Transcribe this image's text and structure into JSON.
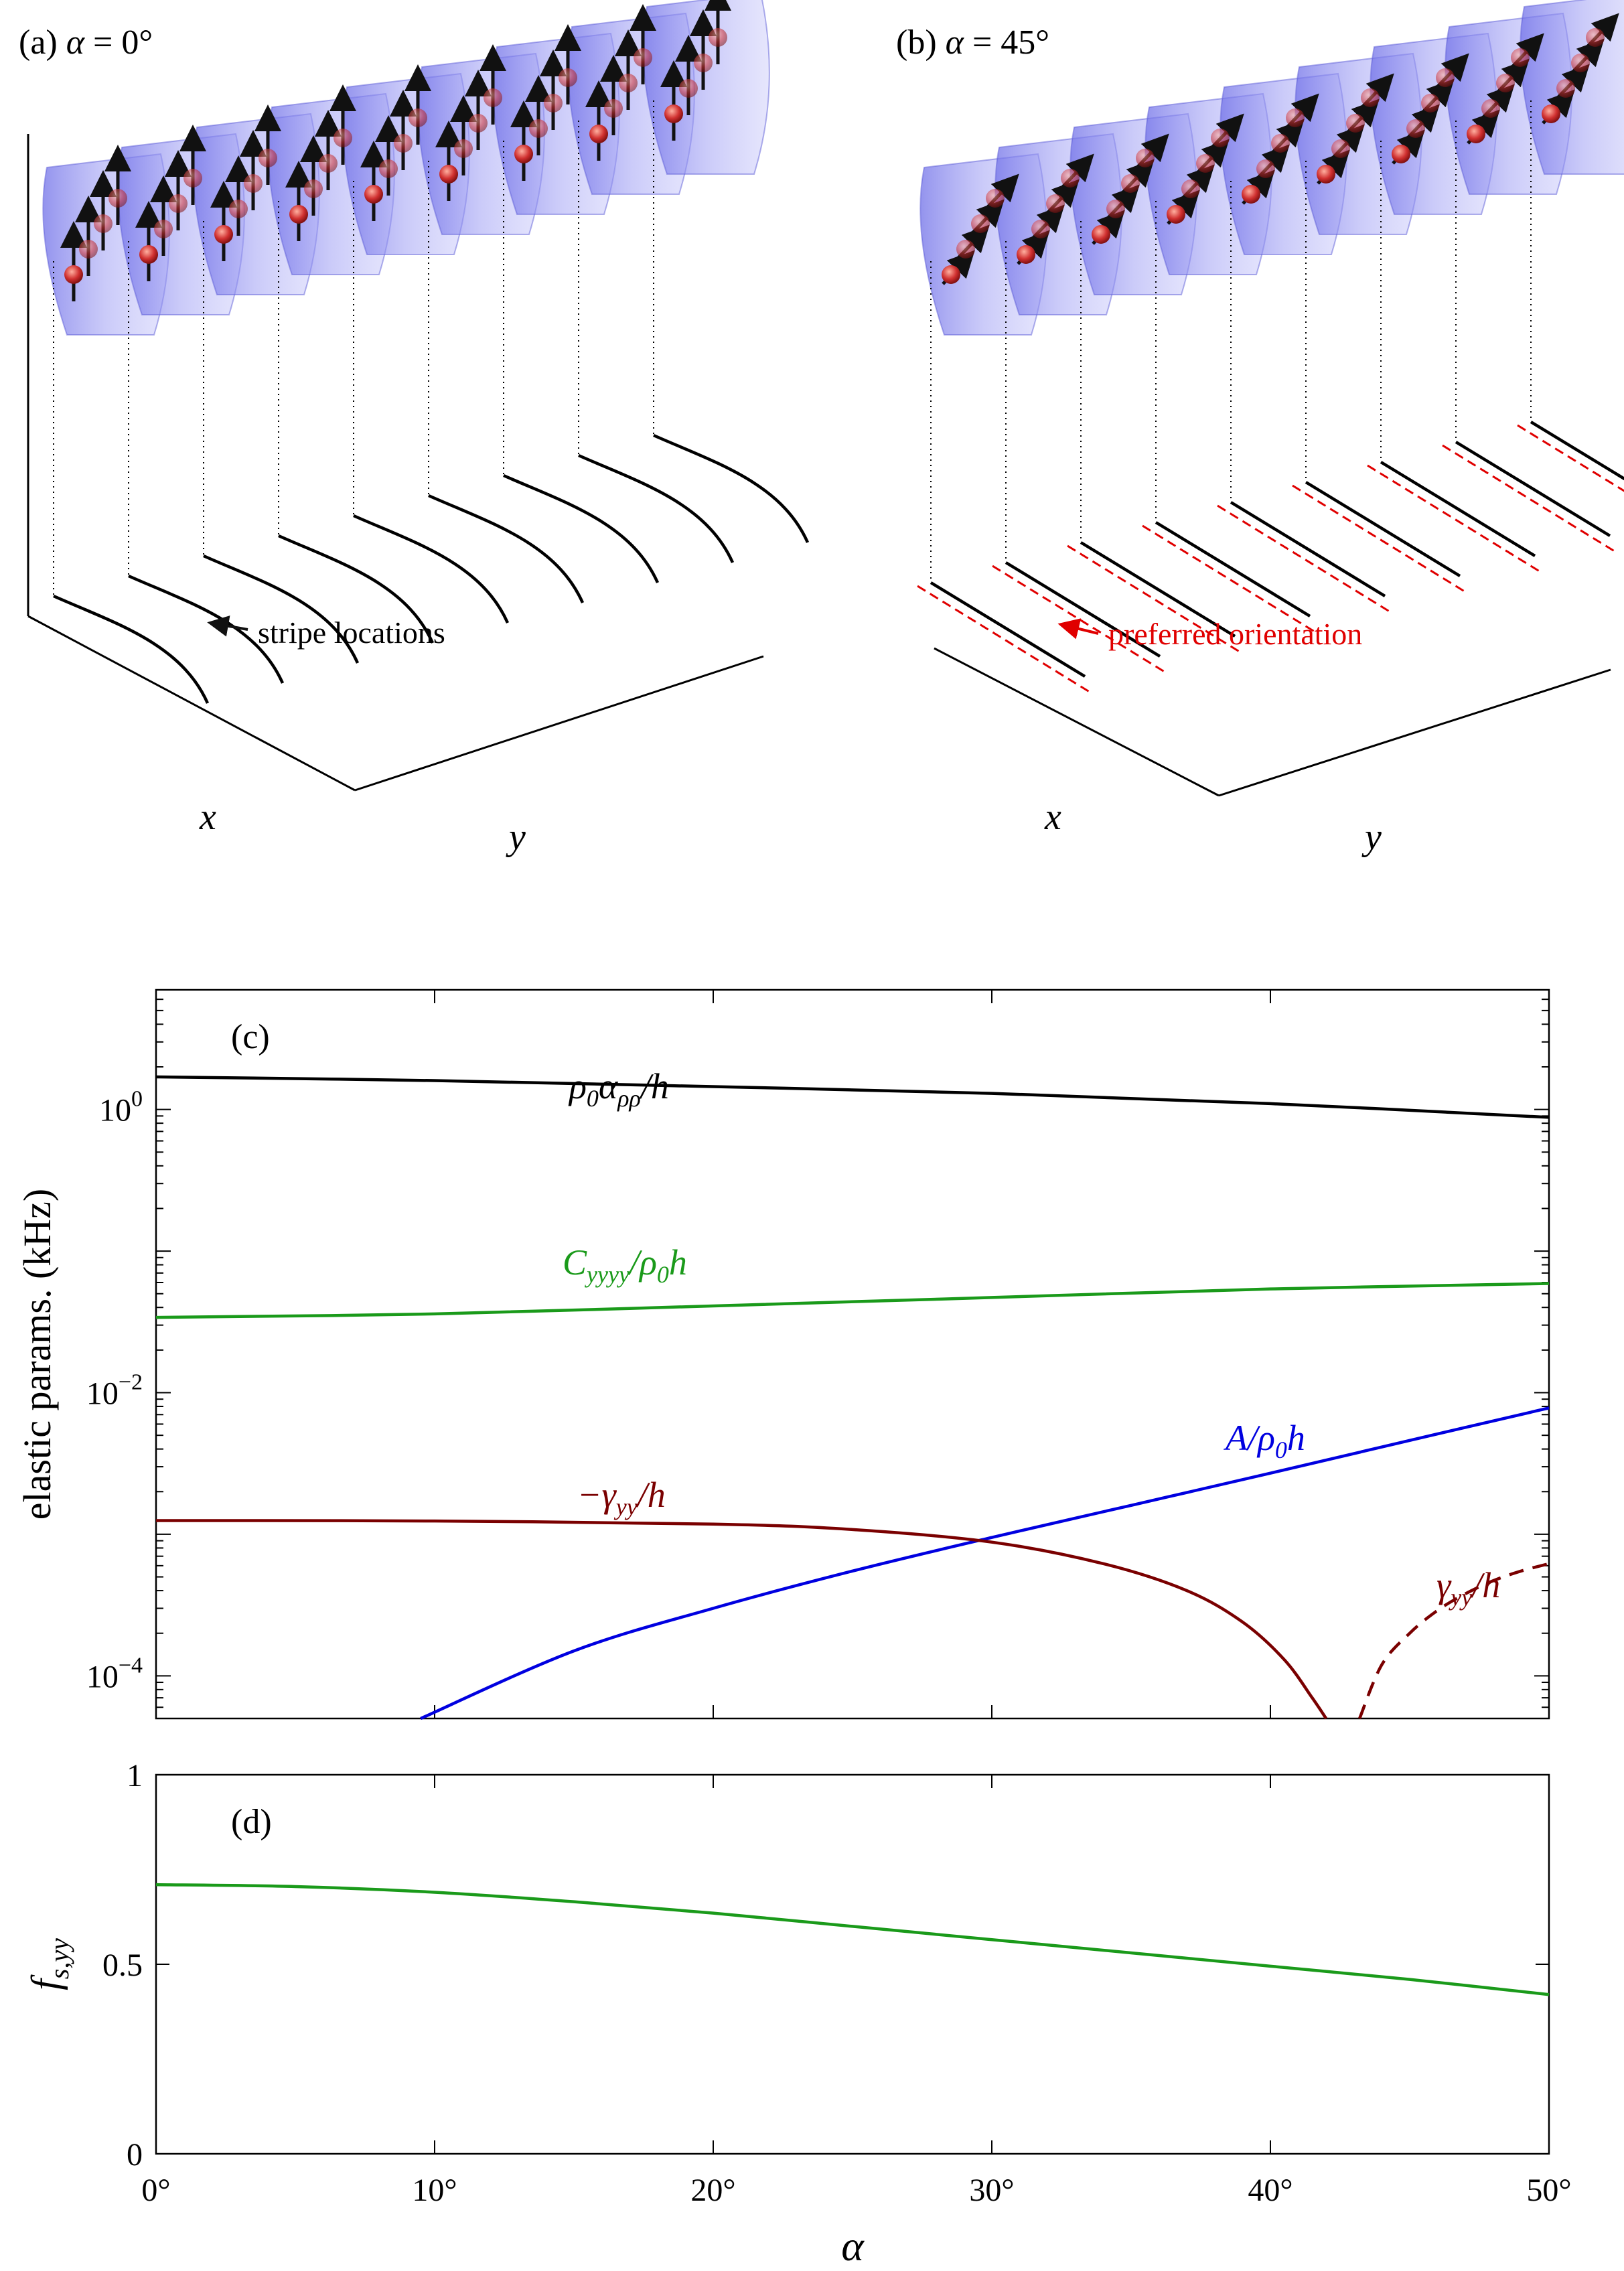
{
  "panels": {
    "a": {
      "title_prefix": "(a) ",
      "title_var": "α",
      "title_suffix": " = 0°",
      "annotation": "stripe locations",
      "xlabel": "x",
      "ylabel": "y"
    },
    "b": {
      "title_prefix": "(b) ",
      "title_var": "α",
      "title_suffix": " = 45°",
      "annotation": "preferred orientation",
      "xlabel": "x",
      "ylabel": "y"
    }
  },
  "colors": {
    "black": "#000000",
    "green": "#1a9a1a",
    "blue": "#0000e0",
    "darkred": "#7a0000",
    "red": "#e00000",
    "lobe": "#8c8cf0",
    "atom": "#d03030"
  },
  "chart_data": [
    {
      "type": "line",
      "panel_label": "(c)",
      "title": "",
      "xlabel": "",
      "ylabel": "elastic params. (kHz)",
      "yscale": "log",
      "xlim": [
        0,
        50
      ],
      "ylim": [
        5e-05,
        7
      ],
      "y_tick_values": [
        0.0001,
        0.01,
        1
      ],
      "y_tick_labels": [
        "10",
        "10",
        "10"
      ],
      "y_tick_exponents": [
        "−4",
        "−2",
        "0"
      ],
      "series": [
        {
          "name": "ρ0αρρ/h",
          "label_parts": [
            "ρ",
            "0",
            "α",
            "ρρ",
            "/h"
          ],
          "color": "black",
          "style": "solid",
          "x": [
            0,
            10,
            20,
            30,
            40,
            50
          ],
          "y": [
            1.7,
            1.6,
            1.45,
            1.3,
            1.1,
            0.88
          ]
        },
        {
          "name": "Cyyyy/ρ0h",
          "label_parts": [
            "C",
            "yyyy",
            "/ρ",
            "0",
            "h"
          ],
          "color": "green",
          "style": "solid",
          "x": [
            0,
            10,
            20,
            30,
            40,
            50
          ],
          "y": [
            0.034,
            0.036,
            0.041,
            0.047,
            0.054,
            0.059
          ]
        },
        {
          "name": "A/ρ0h",
          "label_parts": [
            "A/ρ",
            "0",
            "h"
          ],
          "color": "blue",
          "style": "solid",
          "x": [
            9.5,
            15,
            20,
            25,
            30,
            35,
            40,
            45,
            50
          ],
          "y": [
            5e-05,
            0.00015,
            0.0003,
            0.00055,
            0.00095,
            0.0016,
            0.0027,
            0.0046,
            0.0078
          ]
        },
        {
          "name": "−γyy/h",
          "label_parts": [
            "−γ",
            "yy",
            "/h"
          ],
          "color": "darkred",
          "style": "solid",
          "x": [
            0,
            10,
            20,
            25,
            30,
            34,
            37,
            39,
            40.5,
            41.5,
            42
          ],
          "y": [
            0.00125,
            0.00124,
            0.00118,
            0.00108,
            0.00088,
            0.00062,
            0.0004,
            0.00024,
            0.00013,
            7e-05,
            5e-05
          ]
        },
        {
          "name": "γyy/h",
          "label_parts": [
            "γ",
            "yy",
            "/h"
          ],
          "color": "darkred",
          "style": "dashed",
          "x": [
            43.2,
            44,
            45,
            46,
            47,
            48,
            49,
            50
          ],
          "y": [
            5e-05,
            0.00012,
            0.0002,
            0.00029,
            0.00038,
            0.00047,
            0.00055,
            0.00062
          ]
        }
      ]
    },
    {
      "type": "line",
      "panel_label": "(d)",
      "title": "",
      "xlabel": "α",
      "ylabel": "fs,yy",
      "ylabel_parts": [
        "f",
        "s,yy"
      ],
      "xlim": [
        0,
        50
      ],
      "ylim": [
        0,
        1
      ],
      "x_ticks": [
        0,
        10,
        20,
        30,
        40,
        50
      ],
      "x_tick_labels": [
        "0°",
        "10°",
        "20°",
        "30°",
        "40°",
        "50°"
      ],
      "y_ticks": [
        0,
        0.5,
        1
      ],
      "y_tick_labels": [
        "0",
        "0.5",
        "1"
      ],
      "series": [
        {
          "name": "fs,yy",
          "color": "green",
          "style": "solid",
          "x": [
            0,
            5,
            10,
            15,
            20,
            25,
            30,
            35,
            40,
            45,
            50
          ],
          "y": [
            0.71,
            0.705,
            0.69,
            0.665,
            0.635,
            0.6,
            0.565,
            0.53,
            0.495,
            0.46,
            0.42
          ]
        }
      ]
    }
  ]
}
